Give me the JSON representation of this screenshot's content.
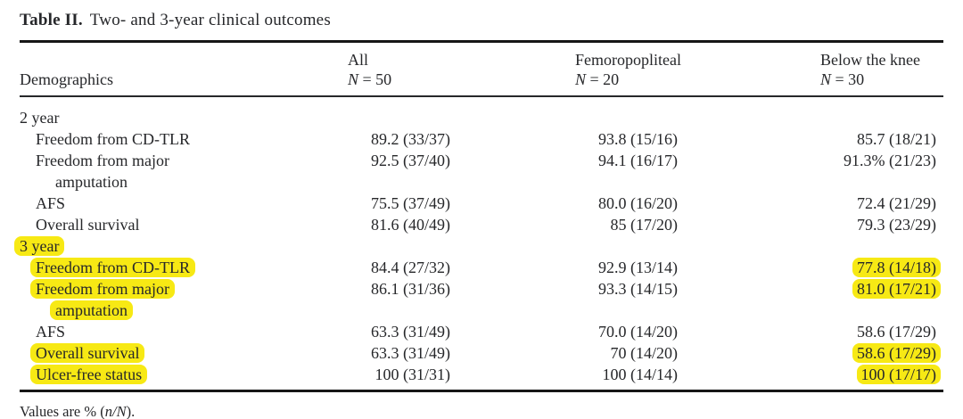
{
  "title": {
    "label": "Table II.",
    "text": "Two- and 3-year clinical outcomes"
  },
  "colors": {
    "highlight": "#f7e914",
    "text": "#26272a",
    "rule": "#161616"
  },
  "table": {
    "demographics_header": "Demographics",
    "columns": [
      {
        "name": "All",
        "n": "N = 50"
      },
      {
        "name": "Femoropopliteal",
        "n": "N = 20"
      },
      {
        "name": "Below the knee",
        "n": "N = 30"
      }
    ],
    "rows": [
      {
        "label": "2 year",
        "indent": 0,
        "highlight": false,
        "values": [
          "",
          "",
          ""
        ],
        "value_highlights": [
          false,
          false,
          false
        ]
      },
      {
        "label": "Freedom from CD-TLR",
        "indent": 1,
        "highlight": false,
        "values": [
          "89.2 (33/37)",
          "93.8 (15/16)",
          "85.7 (18/21)"
        ],
        "value_highlights": [
          false,
          false,
          false
        ]
      },
      {
        "label": "Freedom from major",
        "label2": "amputation",
        "indent": 1,
        "highlight": false,
        "highlight2": false,
        "values": [
          "92.5 (37/40)",
          "94.1 (16/17)",
          "91.3% (21/23)"
        ],
        "value_highlights": [
          false,
          false,
          false
        ]
      },
      {
        "label": "AFS",
        "indent": 1,
        "highlight": false,
        "values": [
          "75.5 (37/49)",
          "80.0 (16/20)",
          "72.4 (21/29)"
        ],
        "value_highlights": [
          false,
          false,
          false
        ]
      },
      {
        "label": "Overall survival",
        "indent": 1,
        "highlight": false,
        "values": [
          "81.6 (40/49)",
          "85 (17/20)",
          "79.3 (23/29)"
        ],
        "value_highlights": [
          false,
          false,
          false
        ]
      },
      {
        "label": "3 year",
        "indent": 0,
        "highlight": true,
        "values": [
          "",
          "",
          ""
        ],
        "value_highlights": [
          false,
          false,
          false
        ]
      },
      {
        "label": "Freedom from CD-TLR",
        "indent": 1,
        "highlight": true,
        "values": [
          "84.4 (27/32)",
          "92.9 (13/14)",
          "77.8 (14/18)"
        ],
        "value_highlights": [
          false,
          false,
          true
        ]
      },
      {
        "label": "Freedom from major",
        "label2": "amputation",
        "indent": 1,
        "highlight": true,
        "highlight2": true,
        "values": [
          "86.1 (31/36)",
          "93.3 (14/15)",
          "81.0 (17/21)"
        ],
        "value_highlights": [
          false,
          false,
          true
        ]
      },
      {
        "label": "AFS",
        "indent": 1,
        "highlight": false,
        "values": [
          "63.3 (31/49)",
          "70.0 (14/20)",
          "58.6 (17/29)"
        ],
        "value_highlights": [
          false,
          false,
          false
        ]
      },
      {
        "label": "Overall survival",
        "indent": 1,
        "highlight": true,
        "values": [
          "63.3 (31/49)",
          "70 (14/20)",
          "58.6 (17/29)"
        ],
        "value_highlights": [
          false,
          false,
          true
        ]
      },
      {
        "label": "Ulcer-free status",
        "indent": 1,
        "highlight": true,
        "values": [
          "100 (31/31)",
          "100 (14/14)",
          "100 (17/17)"
        ],
        "value_highlights": [
          false,
          false,
          true
        ]
      }
    ]
  },
  "footnote": {
    "before": "Values are % (",
    "nN": "n/N",
    "after": ")."
  }
}
